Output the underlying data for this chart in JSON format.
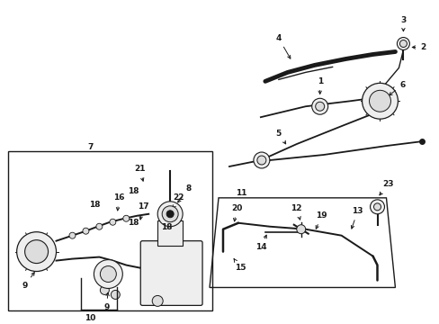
{
  "bg_color": "#ffffff",
  "fig_width": 4.89,
  "fig_height": 3.6,
  "dpi": 100,
  "dark": "#1a1a1a",
  "gray": "#888888",
  "light": "#dddddd",
  "lighter": "#eeeeee"
}
